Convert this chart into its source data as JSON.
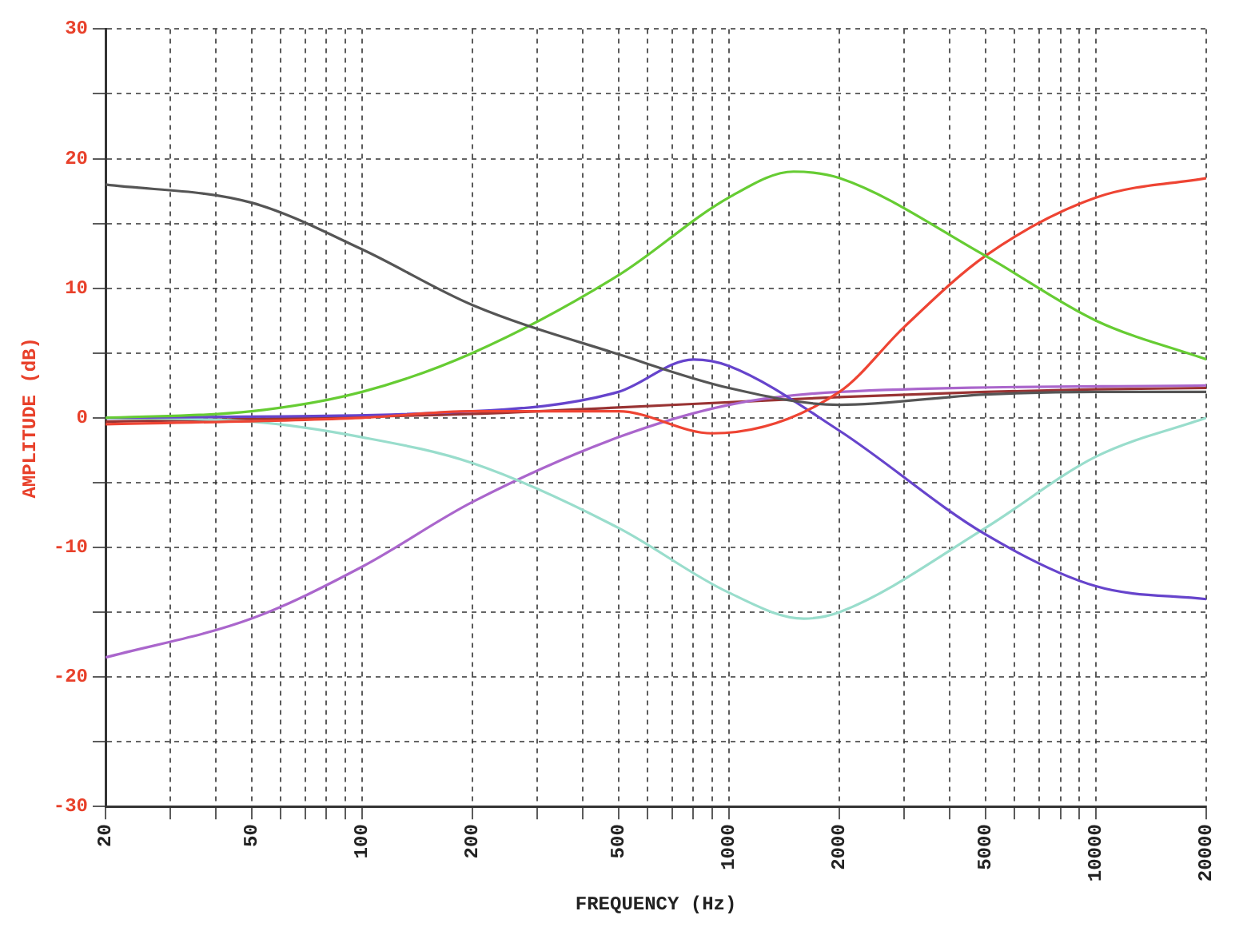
{
  "chart_data": {
    "type": "line",
    "xlabel": "FREQUENCY (Hz)",
    "ylabel": "AMPLITUDE (dB)",
    "log": "x",
    "grid": true,
    "legend": false,
    "marker": "none",
    "line_style": "solid",
    "xlim": [
      20,
      20000
    ],
    "ylim": [
      -30,
      30
    ],
    "xticks": [
      20,
      {
        "value": 30,
        "label": null
      },
      {
        "value": 40,
        "label": null
      },
      50,
      {
        "value": 60,
        "label": null
      },
      {
        "value": 70,
        "label": null
      },
      {
        "value": 80,
        "label": null
      },
      {
        "value": 90,
        "label": null
      },
      100,
      200,
      {
        "value": 300,
        "label": null
      },
      {
        "value": 400,
        "label": null
      },
      500,
      {
        "value": 600,
        "label": null
      },
      {
        "value": 700,
        "label": null
      },
      {
        "value": 800,
        "label": null
      },
      {
        "value": 900,
        "label": null
      },
      1000,
      2000,
      {
        "value": 3000,
        "label": null
      },
      {
        "value": 4000,
        "label": null
      },
      5000,
      {
        "value": 6000,
        "label": null
      },
      {
        "value": 7000,
        "label": null
      },
      {
        "value": 8000,
        "label": null
      },
      {
        "value": 9000,
        "label": null
      },
      10000,
      20000
    ],
    "yticks": [
      -30,
      {
        "value": -25,
        "label": null
      },
      -20,
      {
        "value": -15,
        "label": null
      },
      -10,
      {
        "value": -5,
        "label": null
      },
      0,
      {
        "value": 5,
        "label": null
      },
      10,
      {
        "value": 15,
        "label": null
      },
      20,
      {
        "value": 25,
        "label": null
      },
      30
    ],
    "series": [
      {
        "color": "#555555",
        "x": [
          20,
          50,
          100,
          200,
          500,
          1000,
          2000,
          5000,
          10000,
          20000
        ],
        "values": [
          18,
          16.6,
          13,
          8.7,
          4.9,
          2.3,
          1,
          1.8,
          2,
          2
        ]
      },
      {
        "color": "#66cc33",
        "x": [
          20,
          50,
          100,
          200,
          500,
          1000,
          1500,
          2000,
          5000,
          10000,
          20000
        ],
        "values": [
          0,
          0.5,
          2,
          5,
          11,
          17,
          19,
          18.5,
          12.5,
          7.5,
          4.5
        ]
      },
      {
        "color": "#ee4433",
        "x": [
          20,
          100,
          200,
          500,
          900,
          2000,
          3000,
          5000,
          10000,
          20000
        ],
        "values": [
          -0.5,
          0,
          0.5,
          0.5,
          -1.2,
          2,
          7,
          12.5,
          17,
          18.5
        ]
      },
      {
        "color": "#6644cc",
        "x": [
          20,
          200,
          500,
          800,
          1000,
          2000,
          5000,
          10000,
          20000
        ],
        "values": [
          0,
          0.5,
          2,
          4.5,
          4,
          -1,
          -9,
          -13,
          -14
        ]
      },
      {
        "color": "#99ddcc",
        "x": [
          20,
          50,
          100,
          200,
          500,
          1000,
          1600,
          2000,
          5000,
          10000,
          20000
        ],
        "values": [
          0,
          -0.3,
          -1.5,
          -3.5,
          -8.5,
          -13.5,
          -15.5,
          -15,
          -8.5,
          -3,
          0
        ]
      },
      {
        "color": "#aa66cc",
        "x": [
          20,
          50,
          100,
          200,
          500,
          1000,
          2000,
          20000
        ],
        "values": [
          -18.5,
          -15.5,
          -11.5,
          -6.5,
          -1.5,
          1,
          2,
          2.5
        ]
      },
      {
        "color": "#993333",
        "x": [
          20,
          200,
          500,
          1000,
          2000,
          5000,
          10000,
          20000
        ],
        "values": [
          -0.3,
          0.3,
          0.8,
          1.2,
          1.6,
          2,
          2.2,
          2.3
        ]
      }
    ]
  }
}
